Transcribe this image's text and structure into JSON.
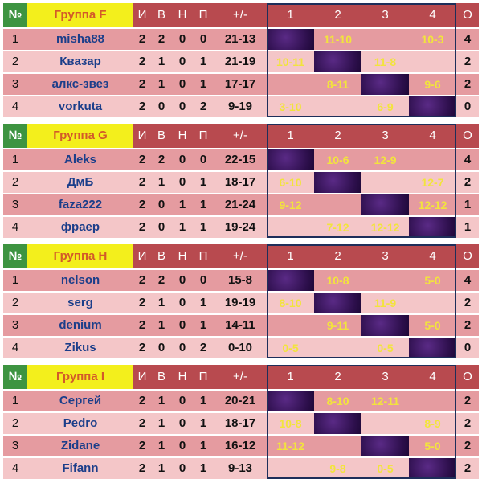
{
  "header": {
    "no": "№",
    "cols": [
      "И",
      "В",
      "Н",
      "П",
      "+/-"
    ],
    "cross": [
      "1",
      "2",
      "3",
      "4"
    ],
    "points": "О"
  },
  "groups": [
    {
      "name": "Группа F",
      "rows": [
        {
          "n": "1",
          "player": "misha88",
          "i": "2",
          "v": "2",
          "d": "0",
          "l": "0",
          "diff": "21-13",
          "r": [
            "",
            "11-10",
            "",
            "10-3"
          ],
          "o": "4"
        },
        {
          "n": "2",
          "player": "Квазар",
          "i": "2",
          "v": "1",
          "d": "0",
          "l": "1",
          "diff": "21-19",
          "r": [
            "10-11",
            "",
            "11-8",
            ""
          ],
          "o": "2"
        },
        {
          "n": "3",
          "player": "алкс-звез",
          "i": "2",
          "v": "1",
          "d": "0",
          "l": "1",
          "diff": "17-17",
          "r": [
            "",
            "8-11",
            "",
            "9-6"
          ],
          "o": "2"
        },
        {
          "n": "4",
          "player": "vorkuta",
          "i": "2",
          "v": "0",
          "d": "0",
          "l": "2",
          "diff": "9-19",
          "r": [
            "3-10",
            "",
            "6-9",
            ""
          ],
          "o": "0"
        }
      ]
    },
    {
      "name": "Группа G",
      "rows": [
        {
          "n": "1",
          "player": "Aleks",
          "i": "2",
          "v": "2",
          "d": "0",
          "l": "0",
          "diff": "22-15",
          "r": [
            "",
            "10-6",
            "12-9",
            ""
          ],
          "o": "4"
        },
        {
          "n": "2",
          "player": "ДмБ",
          "i": "2",
          "v": "1",
          "d": "0",
          "l": "1",
          "diff": "18-17",
          "r": [
            "6-10",
            "",
            "",
            "12-7"
          ],
          "o": "2"
        },
        {
          "n": "3",
          "player": "faza222",
          "i": "2",
          "v": "0",
          "d": "1",
          "l": "1",
          "diff": "21-24",
          "r": [
            "9-12",
            "",
            "",
            "12-12"
          ],
          "o": "1"
        },
        {
          "n": "4",
          "player": "фраер",
          "i": "2",
          "v": "0",
          "d": "1",
          "l": "1",
          "diff": "19-24",
          "r": [
            "",
            "7-12",
            "12-12",
            ""
          ],
          "o": "1"
        }
      ]
    },
    {
      "name": "Группа H",
      "rows": [
        {
          "n": "1",
          "player": "nelson",
          "i": "2",
          "v": "2",
          "d": "0",
          "l": "0",
          "diff": "15-8",
          "r": [
            "",
            "10-8",
            "",
            "5-0"
          ],
          "o": "4"
        },
        {
          "n": "2",
          "player": "serg",
          "i": "2",
          "v": "1",
          "d": "0",
          "l": "1",
          "diff": "19-19",
          "r": [
            "8-10",
            "",
            "11-9",
            ""
          ],
          "o": "2"
        },
        {
          "n": "3",
          "player": "denium",
          "i": "2",
          "v": "1",
          "d": "0",
          "l": "1",
          "diff": "14-11",
          "r": [
            "",
            "9-11",
            "",
            "5-0"
          ],
          "o": "2"
        },
        {
          "n": "4",
          "player": "Zikus",
          "i": "2",
          "v": "0",
          "d": "0",
          "l": "2",
          "diff": "0-10",
          "r": [
            "0-5",
            "",
            "0-5",
            ""
          ],
          "o": "0"
        }
      ]
    },
    {
      "name": "Группа I",
      "rows": [
        {
          "n": "1",
          "player": "Сергей",
          "i": "2",
          "v": "1",
          "d": "0",
          "l": "1",
          "diff": "20-21",
          "r": [
            "",
            "8-10",
            "12-11",
            ""
          ],
          "o": "2"
        },
        {
          "n": "2",
          "player": "Pedro",
          "i": "2",
          "v": "1",
          "d": "0",
          "l": "1",
          "diff": "18-17",
          "r": [
            "10-8",
            "",
            "",
            "8-9"
          ],
          "o": "2"
        },
        {
          "n": "3",
          "player": "Zidane",
          "i": "2",
          "v": "1",
          "d": "0",
          "l": "1",
          "diff": "16-12",
          "r": [
            "11-12",
            "",
            "",
            "5-0"
          ],
          "o": "2"
        },
        {
          "n": "4",
          "player": "Fifann",
          "i": "2",
          "v": "1",
          "d": "0",
          "l": "1",
          "diff": "9-13",
          "r": [
            "",
            "9-8",
            "0-5",
            ""
          ],
          "o": "2"
        }
      ]
    }
  ]
}
